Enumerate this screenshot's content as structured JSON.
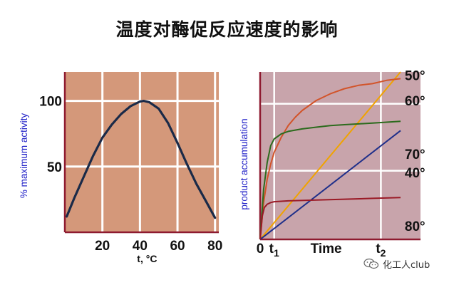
{
  "page": {
    "title": "温度对酶促反应速度的影响"
  },
  "watermark": {
    "text": "化工人club",
    "icon": "wechat-icon"
  },
  "colors": {
    "panel_left": "#d4987a",
    "panel_right": "#c8a4ab",
    "frame": "#8e1b30",
    "grid": "#ffffff",
    "ylabel": "#2323c8",
    "c50": "#f0a300",
    "c60": "#d2542a",
    "c70": "#2c6b1d",
    "c40": "#1f2f8a",
    "c80": "#9a1a26",
    "bell": "#1a2a48"
  },
  "chart_data": [
    {
      "type": "line",
      "ylabel": "% maximum activity",
      "xlabel": "t, °C",
      "xlim": [
        0,
        82
      ],
      "ylim": [
        0,
        122
      ],
      "grid": true,
      "xticks": [
        {
          "v": 20,
          "label": "20"
        },
        {
          "v": 40,
          "label": "40"
        },
        {
          "v": 60,
          "label": "60"
        },
        {
          "v": 80,
          "label": "80"
        }
      ],
      "yticks": [
        {
          "v": 50,
          "label": "50"
        },
        {
          "v": 100,
          "label": "100"
        }
      ],
      "series": [
        {
          "color_key": "bell",
          "x": [
            1,
            5,
            10,
            15,
            20,
            25,
            30,
            35,
            40,
            42,
            45,
            50,
            55,
            60,
            65,
            70,
            75,
            80
          ],
          "y": [
            12,
            26,
            42,
            58,
            72,
            82,
            90,
            96,
            99.5,
            100,
            99,
            94,
            83,
            68,
            52,
            37,
            24,
            11
          ]
        }
      ]
    },
    {
      "type": "line",
      "ylabel": "product accumulation",
      "xlim": [
        0,
        10
      ],
      "ylim": [
        0,
        100
      ],
      "grid": true,
      "xticks": [
        {
          "v": 0,
          "label": "0"
        },
        {
          "v": 1,
          "label": "t",
          "sub": "1"
        },
        {
          "v": 8.6,
          "label": "t",
          "sub": "2"
        }
      ],
      "x_title": {
        "v": 4.7,
        "label": "Time"
      },
      "series": [
        {
          "name": "50°",
          "color_key": "c50",
          "x": [
            0,
            10
          ],
          "y": [
            0,
            100
          ],
          "label_at": [
            10.3,
            98
          ]
        },
        {
          "name": "60°",
          "color_key": "c60",
          "x": [
            0,
            0.25,
            0.5,
            0.75,
            1,
            1.5,
            2,
            2.5,
            3,
            3.5,
            4,
            5,
            6,
            7,
            8,
            9,
            10
          ],
          "y": [
            0,
            22,
            36,
            45,
            52,
            61,
            68,
            73,
            77,
            80,
            83,
            87,
            90,
            92,
            93,
            95,
            96
          ],
          "label_at": [
            10.3,
            83
          ]
        },
        {
          "name": "70°",
          "color_key": "c70",
          "x": [
            0,
            0.25,
            0.5,
            0.75,
            1,
            1.5,
            2,
            3,
            4,
            5,
            6,
            7,
            8,
            9,
            10
          ],
          "y": [
            0,
            30,
            46,
            56,
            60,
            63,
            64.5,
            66,
            67,
            68,
            68.5,
            69,
            69.5,
            70,
            70.5
          ],
          "label_at": [
            10.3,
            51
          ]
        },
        {
          "name": "40°",
          "color_key": "c40",
          "x": [
            0,
            10
          ],
          "y": [
            0,
            65
          ],
          "label_at": [
            10.3,
            40
          ]
        },
        {
          "name": "80°",
          "color_key": "c80",
          "x": [
            0,
            0.15,
            0.3,
            0.5,
            0.75,
            1,
            2,
            4,
            6,
            8,
            10
          ],
          "y": [
            0,
            14,
            19,
            21,
            22,
            22.5,
            23,
            23.5,
            24,
            24.5,
            25
          ],
          "label_at": [
            10.3,
            8
          ]
        }
      ]
    }
  ]
}
